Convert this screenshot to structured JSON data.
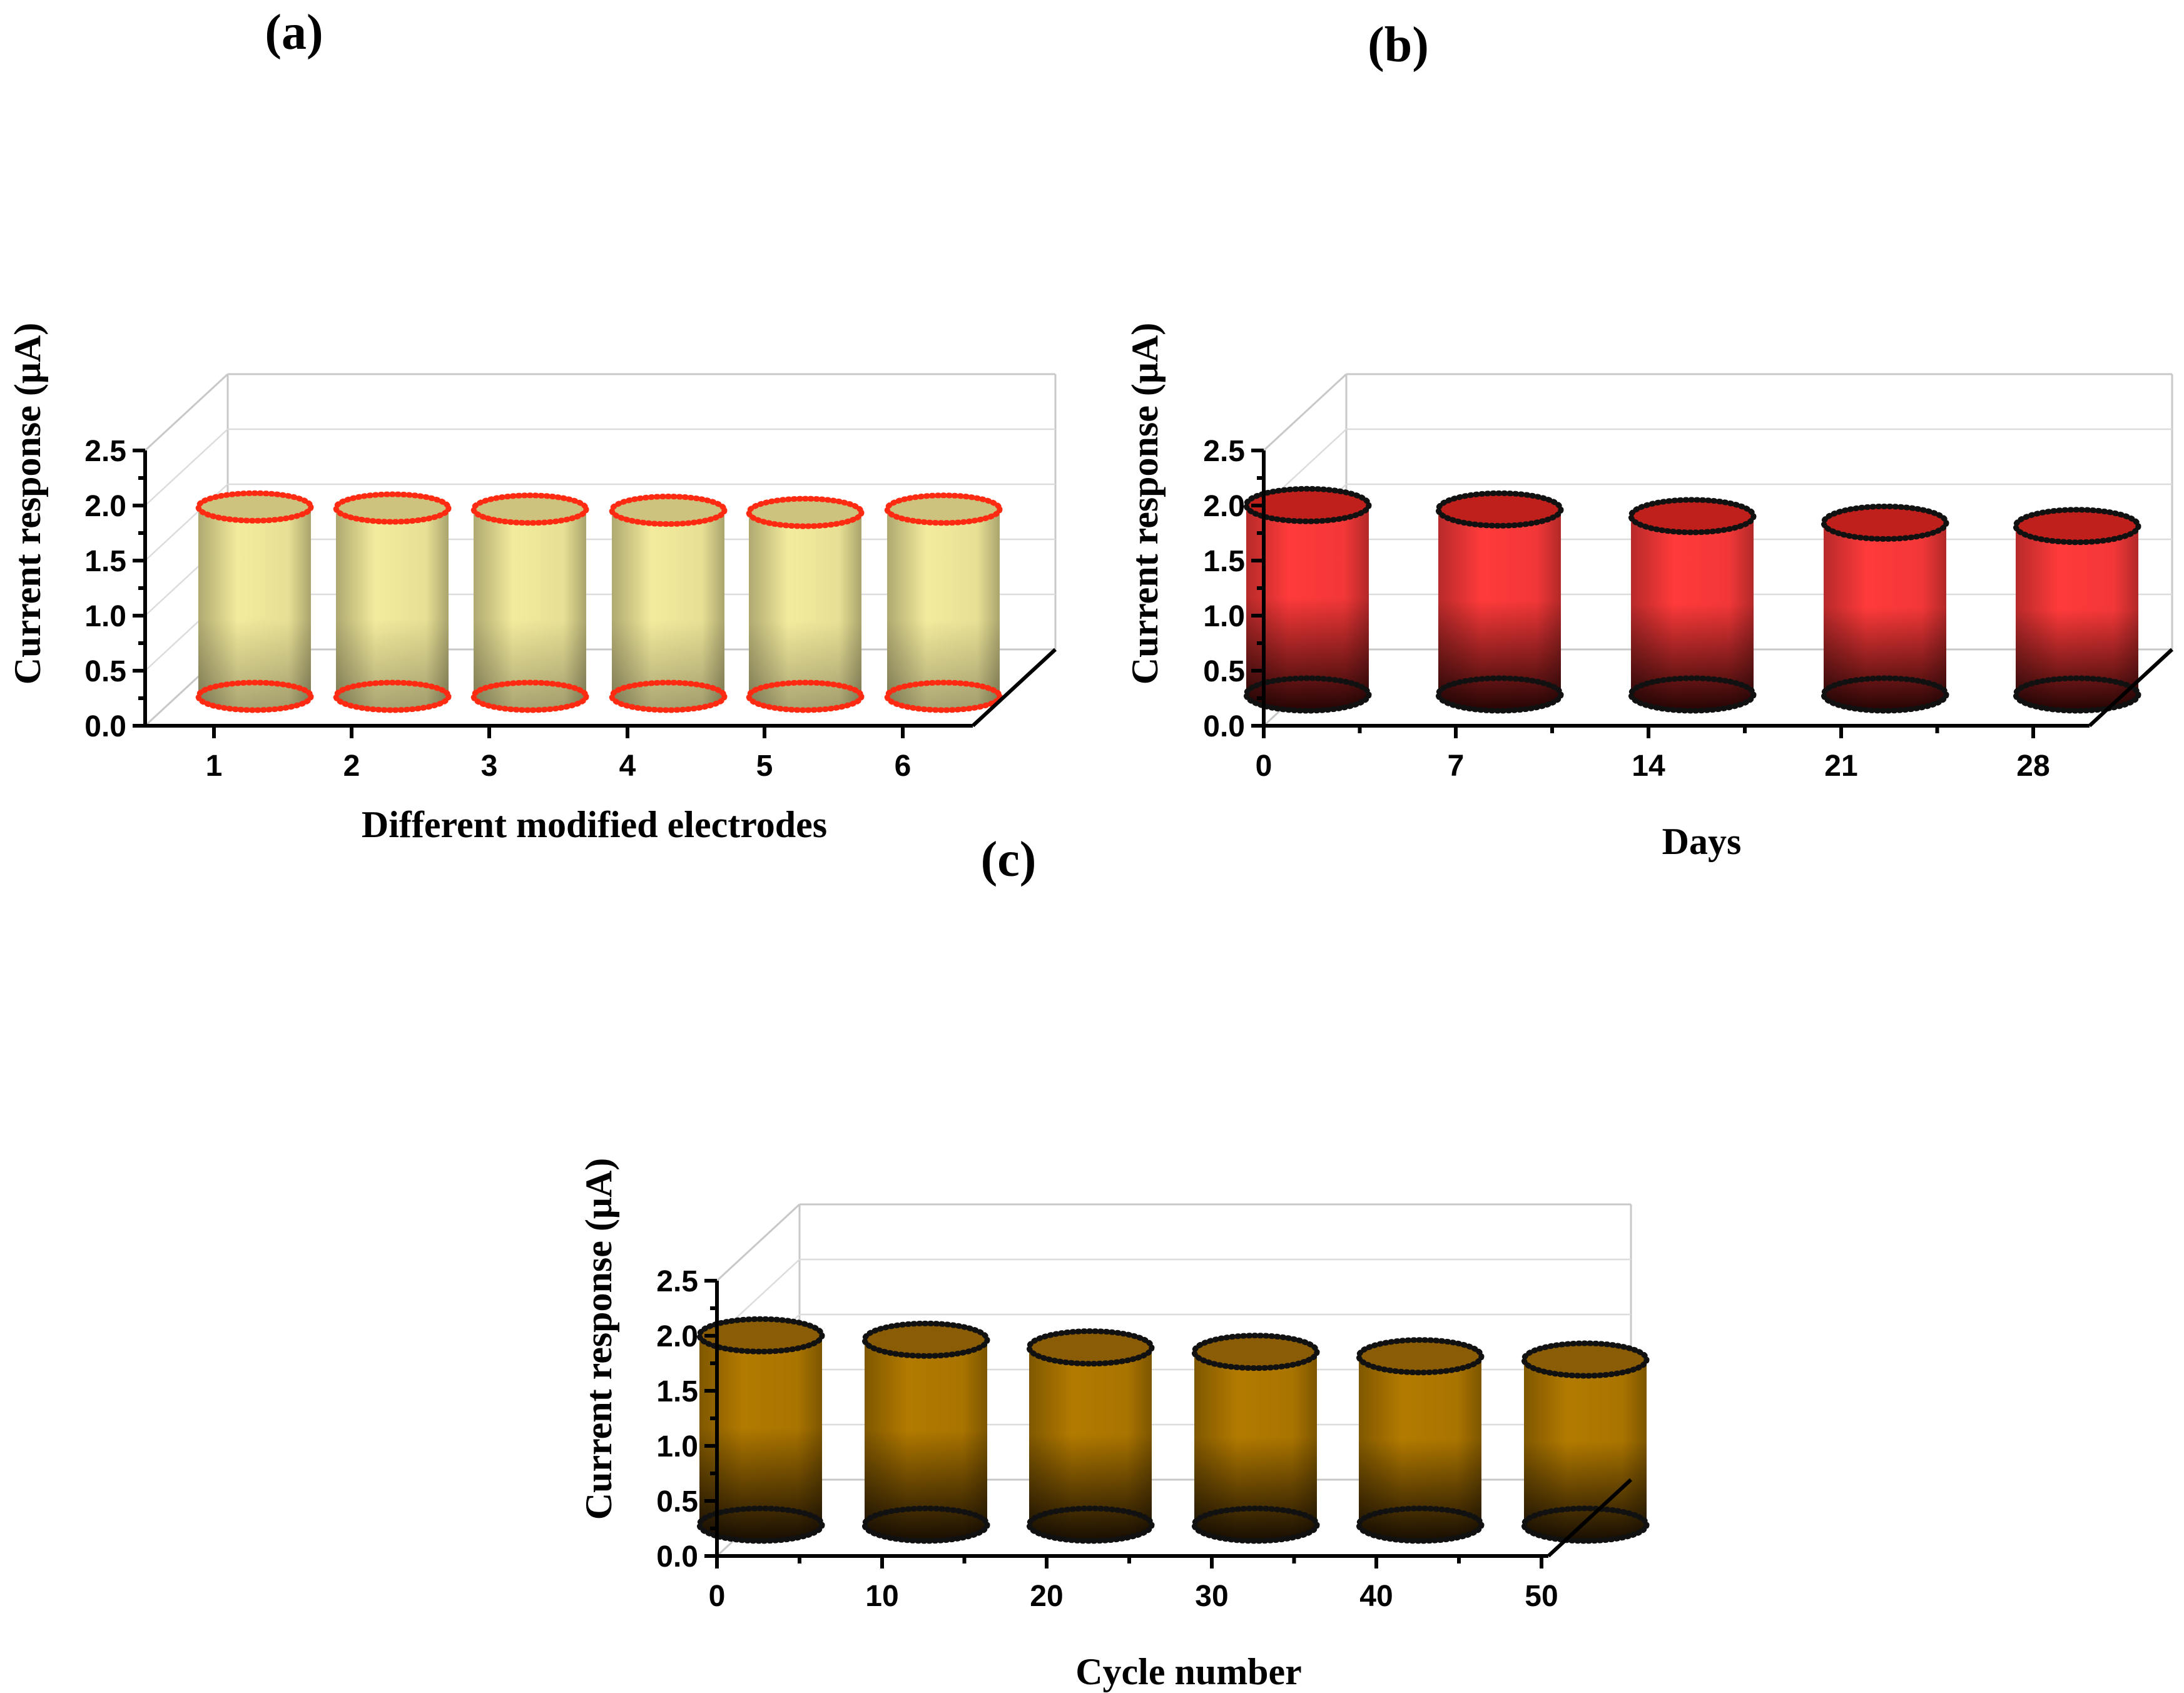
{
  "chart_data": [
    {
      "type": "bar",
      "style": "3d-cylinder",
      "panel_label": "(a)",
      "xlabel": "Different modified electrodes",
      "ylabel": "Current response (μA)",
      "categories": [
        "1",
        "2",
        "3",
        "4",
        "5",
        "6"
      ],
      "values": [
        1.72,
        1.71,
        1.7,
        1.69,
        1.67,
        1.7
      ],
      "ylim": [
        0,
        2.5
      ],
      "yticks": [
        "0.0",
        "0.5",
        "1.0",
        "1.5",
        "2.0",
        "2.5"
      ],
      "colors": {
        "body_light": "#f3eb9c",
        "body_dark": "#a9a472",
        "top": "#cdc27e",
        "ring": "#ff2a12"
      }
    },
    {
      "type": "bar",
      "style": "3d-cylinder",
      "panel_label": "(b)",
      "xlabel": "Days",
      "ylabel": "Current response (μA)",
      "categories": [
        "0",
        "7",
        "14",
        "21",
        "28"
      ],
      "values": [
        1.72,
        1.68,
        1.62,
        1.56,
        1.53
      ],
      "ylim": [
        0,
        2.5
      ],
      "yticks": [
        "0.0",
        "0.5",
        "1.0",
        "1.5",
        "2.0",
        "2.5"
      ],
      "colors": {
        "body_light": "#ff3a3a",
        "body_dark": "#250404",
        "top": "#c0201c",
        "ring": "#111111"
      }
    },
    {
      "type": "bar",
      "style": "3d-cylinder",
      "panel_label": "(c)",
      "xlabel": "Cycle number",
      "ylabel": "Current response (μA)",
      "categories": [
        "0",
        "10",
        "20",
        "30",
        "40",
        "50"
      ],
      "values": [
        1.72,
        1.68,
        1.61,
        1.57,
        1.53,
        1.5
      ],
      "ylim": [
        0,
        2.5
      ],
      "yticks": [
        "0.0",
        "0.5",
        "1.0",
        "1.5",
        "2.0",
        "2.5"
      ],
      "colors": {
        "body_light": "#b27a00",
        "body_dark": "#170d02",
        "top": "#8a5c06",
        "ring": "#111111"
      }
    }
  ]
}
